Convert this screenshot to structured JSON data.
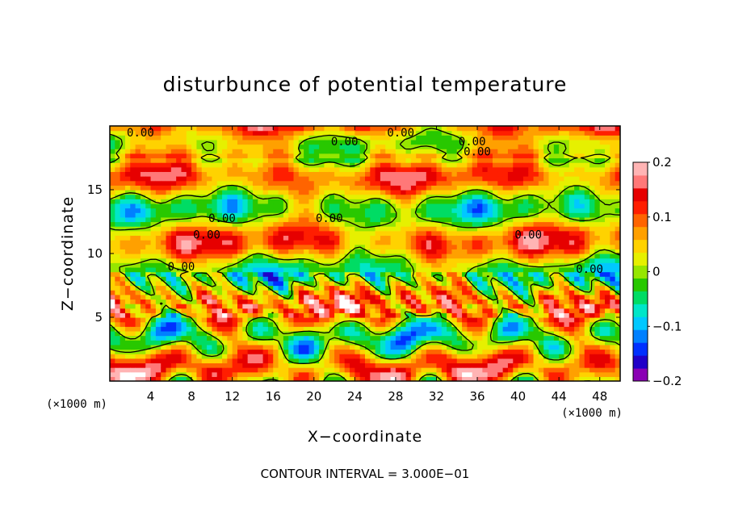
{
  "chart_data": {
    "type": "heatmap",
    "title": "disturbunce of potential temperature",
    "xlabel": "X−coordinate",
    "ylabel": "Z−coordinate",
    "x_unit": "(×1000 m)",
    "y_unit": "(×1000 m)",
    "xlim": [
      0,
      50
    ],
    "ylim": [
      0,
      20
    ],
    "x_ticks": [
      4,
      8,
      12,
      16,
      20,
      24,
      28,
      32,
      36,
      40,
      44,
      48
    ],
    "x_tick_labels": [
      "4",
      "8",
      "12",
      "16",
      "20",
      "24",
      "28",
      "32",
      "36",
      "40",
      "44",
      "48"
    ],
    "y_ticks": [
      5,
      10,
      15
    ],
    "y_tick_labels": [
      "5",
      "10",
      "15"
    ],
    "colorbar": {
      "range": [
        -0.2,
        0.2
      ],
      "ticks": [
        0.2,
        0.1,
        0,
        -0.1,
        -0.2
      ],
      "tick_labels": [
        "0.2",
        "0.1",
        "0",
        "−0.1",
        "−0.2"
      ],
      "colors": [
        "#8a00b4",
        "#2000c8",
        "#0030ff",
        "#0080ff",
        "#00c8ff",
        "#00e6c8",
        "#00dc64",
        "#28c800",
        "#96e600",
        "#e6f000",
        "#ffd200",
        "#ffa000",
        "#ff6400",
        "#ff1e00",
        "#e60000",
        "#ff7878",
        "#ffb4b4"
      ]
    },
    "contour_interval_text": "CONTOUR INTERVAL = 3.000E−01",
    "contour_labels": [
      {
        "text": "0.00",
        "x": 3.0,
        "z": 19.5
      },
      {
        "text": "0.00",
        "x": 28.5,
        "z": 19.5
      },
      {
        "text": "0.00",
        "x": 23.0,
        "z": 18.8
      },
      {
        "text": "0.00",
        "x": 35.5,
        "z": 18.8
      },
      {
        "text": "0.00",
        "x": 36.0,
        "z": 18.0
      },
      {
        "text": "0.00",
        "x": 11.0,
        "z": 12.8
      },
      {
        "text": "0.00",
        "x": 21.5,
        "z": 12.8
      },
      {
        "text": "0.00",
        "x": 41.0,
        "z": 11.5
      },
      {
        "text": "0.00",
        "x": 9.5,
        "z": 11.5
      },
      {
        "text": "0.00",
        "x": 7.0,
        "z": 9.0
      },
      {
        "text": "0.00",
        "x": 47.0,
        "z": 8.8
      }
    ],
    "grid": false,
    "legend": "right"
  }
}
